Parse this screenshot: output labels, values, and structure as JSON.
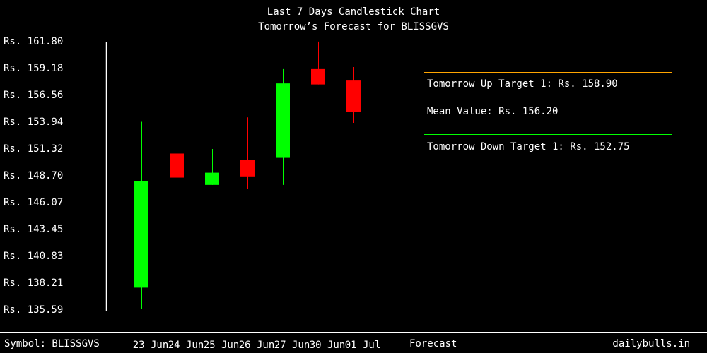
{
  "colors": {
    "background": "#000000",
    "text": "#ffffff",
    "up_candle": "#00ff00",
    "down_candle": "#ff0000",
    "up_target_line": "#ffa500",
    "mean_line": "#ff0000",
    "down_target_line": "#00ff00"
  },
  "footer": {
    "symbol": "Symbol: BLISSGVS",
    "forecast": "Forecast",
    "site": "dailybulls.in"
  },
  "chart_data": {
    "type": "candlestick",
    "title": "Last 7 Days Candlestick Chart",
    "subtitle": "Tomorrow’s Forecast for BLISSGVS",
    "xlabel": "",
    "ylabel": "",
    "ylim": [
      135.59,
      161.8
    ],
    "y_tick_labels": [
      "Rs. 161.80",
      "Rs. 159.18",
      "Rs. 156.56",
      "Rs. 153.94",
      "Rs. 151.32",
      "Rs. 148.70",
      "Rs. 146.07",
      "Rs. 143.45",
      "Rs. 140.83",
      "Rs. 138.21",
      "Rs. 135.59"
    ],
    "y_tick_values": [
      161.8,
      159.18,
      156.56,
      153.94,
      151.32,
      148.7,
      146.07,
      143.45,
      140.83,
      138.21,
      135.59
    ],
    "categories": [
      "23 Jun",
      "24 Jun",
      "25 Jun",
      "26 Jun",
      "27 Jun",
      "30 Jun",
      "01 Jul"
    ],
    "candles": [
      {
        "date": "23 Jun",
        "open": 137.7,
        "high": 153.9,
        "low": 135.6,
        "close": 148.1
      },
      {
        "date": "24 Jun",
        "open": 150.8,
        "high": 152.65,
        "low": 147.99,
        "close": 148.45
      },
      {
        "date": "25 Jun",
        "open": 147.74,
        "high": 151.25,
        "low": 147.74,
        "close": 148.93
      },
      {
        "date": "26 Jun",
        "open": 150.15,
        "high": 154.33,
        "low": 147.36,
        "close": 148.57
      },
      {
        "date": "27 Jun",
        "open": 150.38,
        "high": 159.05,
        "low": 147.74,
        "close": 157.65
      },
      {
        "date": "30 Jun",
        "open": 159.05,
        "high": 161.74,
        "low": 157.55,
        "close": 157.55
      },
      {
        "date": "01 Jul",
        "open": 157.93,
        "high": 159.25,
        "low": 153.8,
        "close": 154.9
      }
    ],
    "forecast": {
      "up_target_label": "Tomorrow Up Target 1: Rs. 158.90",
      "up_target": 158.9,
      "mean_label": "Mean Value: Rs. 156.20",
      "mean": 156.2,
      "down_target_label": "Tomorrow Down Target 1: Rs. 152.75",
      "down_target": 152.75
    },
    "grid": false,
    "legend": "right"
  }
}
